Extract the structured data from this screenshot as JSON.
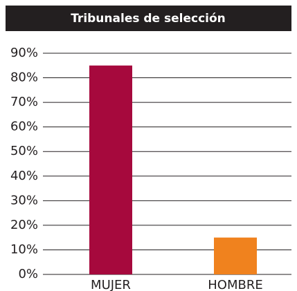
{
  "chart_data": {
    "type": "bar",
    "title": "Tribunales de selección",
    "categories": [
      "MUJER",
      "HOMBRE"
    ],
    "series": [
      {
        "name": null,
        "colors": [
          "#a6093d",
          "#f0821e"
        ],
        "values": [
          85,
          15
        ]
      }
    ],
    "ylim": [
      0,
      90
    ],
    "yticks": [
      {
        "value": 0,
        "label": "0%"
      },
      {
        "value": 10,
        "label": "10%"
      },
      {
        "value": 20,
        "label": "20%"
      },
      {
        "value": 30,
        "label": "30%"
      },
      {
        "value": 40,
        "label": "40%"
      },
      {
        "value": 50,
        "label": "50%"
      },
      {
        "value": 60,
        "label": "60%"
      },
      {
        "value": 70,
        "label": "70%"
      },
      {
        "value": 80,
        "label": "80%"
      },
      {
        "value": 90,
        "label": "90%"
      }
    ],
    "grid": true
  }
}
